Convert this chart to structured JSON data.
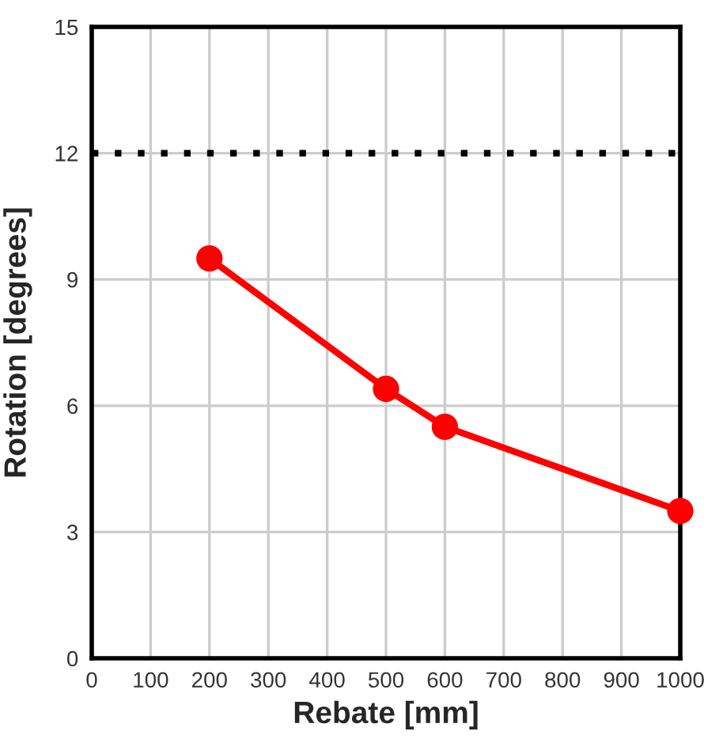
{
  "chart_data": {
    "type": "line",
    "xlabel": "Rebate [mm]",
    "ylabel": "Rotation [degrees]",
    "x": [
      200,
      500,
      600,
      1000
    ],
    "series": [
      {
        "color": "#ff0000",
        "values": [
          9.5,
          6.4,
          5.5,
          3.5
        ]
      }
    ],
    "xlim": [
      0,
      1000
    ],
    "xticks": [
      0,
      100,
      200,
      300,
      400,
      500,
      600,
      700,
      800,
      900,
      1000
    ],
    "ylim": [
      0,
      15
    ],
    "yticks": [
      0,
      3,
      6,
      9,
      12,
      15
    ],
    "ref_lines": [
      {
        "axis": "y",
        "value": 12,
        "color": "#000000",
        "line_style": "dotted"
      }
    ],
    "grid": true,
    "marker": "circle",
    "line_style": "solid",
    "legend": false
  }
}
